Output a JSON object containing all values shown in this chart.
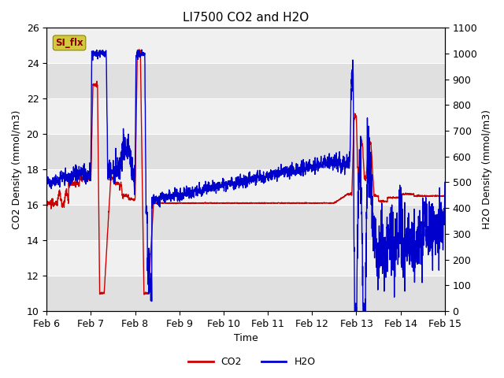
{
  "title": "LI7500 CO2 and H2O",
  "xlabel": "Time",
  "ylabel_left": "CO2 Density (mmol/m3)",
  "ylabel_right": "H2O Density (mmol/m3)",
  "ylim_left": [
    10,
    26
  ],
  "ylim_right": [
    0,
    1100
  ],
  "yticks_left": [
    10,
    12,
    14,
    16,
    18,
    20,
    22,
    24,
    26
  ],
  "yticks_right": [
    0,
    100,
    200,
    300,
    400,
    500,
    600,
    700,
    800,
    900,
    1000,
    1100
  ],
  "xtick_labels": [
    "Feb 6",
    "Feb 7",
    "Feb 8",
    "Feb 9",
    "Feb 10",
    "Feb 11",
    "Feb 12",
    "Feb 13",
    "Feb 14",
    "Feb 15"
  ],
  "background_color": "#e8e8e8",
  "band_color_light": "#f0f0f0",
  "band_color_dark": "#e0e0e0",
  "line_co2_color": "#cc0000",
  "line_h2o_color": "#0000cc",
  "si_flx_box_color": "#d4c840",
  "si_flx_text_color": "#8b0000",
  "legend_co2": "CO2",
  "legend_h2o": "H2O",
  "title_fontsize": 11,
  "axis_label_fontsize": 9,
  "tick_fontsize": 9,
  "legend_fontsize": 9
}
